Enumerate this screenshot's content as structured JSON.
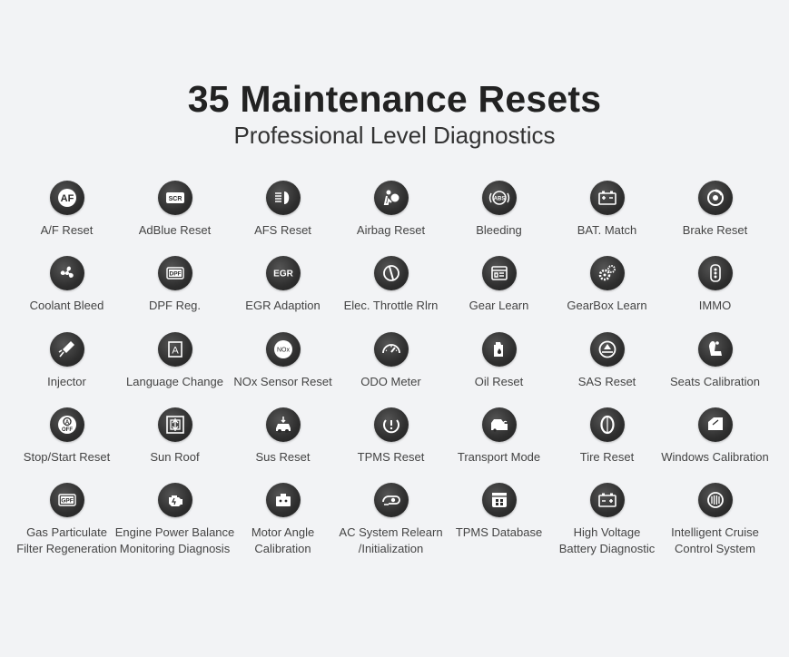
{
  "header": {
    "title": "35 Maintenance Resets",
    "subtitle": "Professional Level Diagnostics"
  },
  "items": [
    {
      "label": "A/F Reset",
      "icon": "af-icon",
      "badge": "AF"
    },
    {
      "label": "AdBlue Reset",
      "icon": "scr-icon",
      "badge": "SCR"
    },
    {
      "label": "AFS Reset",
      "icon": "headlight-icon"
    },
    {
      "label": "Airbag Reset",
      "icon": "airbag-icon"
    },
    {
      "label": "Bleeding",
      "icon": "abs-icon",
      "badge": "ABS"
    },
    {
      "label": "BAT. Match",
      "icon": "battery-icon"
    },
    {
      "label": "Brake Reset",
      "icon": "brake-icon"
    },
    {
      "label": "Coolant Bleed",
      "icon": "fan-icon"
    },
    {
      "label": "DPF Reg.",
      "icon": "dpf-icon",
      "badge": "DPF"
    },
    {
      "label": "EGR Adaption",
      "icon": "egr-icon",
      "badge": "EGR"
    },
    {
      "label": "Elec. Throttle Rlrn",
      "icon": "throttle-icon"
    },
    {
      "label": "Gear Learn",
      "icon": "gear-learn-icon"
    },
    {
      "label": "GearBox Learn",
      "icon": "gearbox-icon"
    },
    {
      "label": "IMMO",
      "icon": "key-fob-icon"
    },
    {
      "label": "Injector",
      "icon": "injector-icon"
    },
    {
      "label": "Language Change",
      "icon": "language-icon",
      "badge": "A"
    },
    {
      "label": "NOx Sensor Reset",
      "icon": "nox-icon",
      "badge": "NOx"
    },
    {
      "label": "ODO Meter",
      "icon": "odometer-icon"
    },
    {
      "label": "Oil Reset",
      "icon": "oil-icon"
    },
    {
      "label": "SAS Reset",
      "icon": "steering-icon"
    },
    {
      "label": "Seats Calibration",
      "icon": "seat-icon"
    },
    {
      "label": "Stop/Start Reset",
      "icon": "auto-off-icon",
      "badge": "OFF"
    },
    {
      "label": "Sun Roof",
      "icon": "sunroof-icon"
    },
    {
      "label": "Sus Reset",
      "icon": "suspension-icon"
    },
    {
      "label": "TPMS Reset",
      "icon": "tpms-icon"
    },
    {
      "label": "Transport Mode",
      "icon": "transport-icon"
    },
    {
      "label": "Tire Reset",
      "icon": "tire-icon"
    },
    {
      "label": "Windows Calibration",
      "icon": "window-icon"
    },
    {
      "label": "Gas Particulate\nFilter Regeneration",
      "icon": "gpf-icon",
      "badge": "GPF"
    },
    {
      "label": "Engine Power Balance\nMonitoring Diagnosis",
      "icon": "engine-icon"
    },
    {
      "label": "Motor Angle\nCalibration",
      "icon": "motor-icon"
    },
    {
      "label": "AC System Relearn\n/Initialization",
      "icon": "ac-icon"
    },
    {
      "label": "TPMS Database",
      "icon": "database-icon"
    },
    {
      "label": "High Voltage\nBattery Diagnostic",
      "icon": "hv-battery-icon"
    },
    {
      "label": "Intelligent Cruise\nControl System",
      "icon": "cruise-icon"
    }
  ]
}
